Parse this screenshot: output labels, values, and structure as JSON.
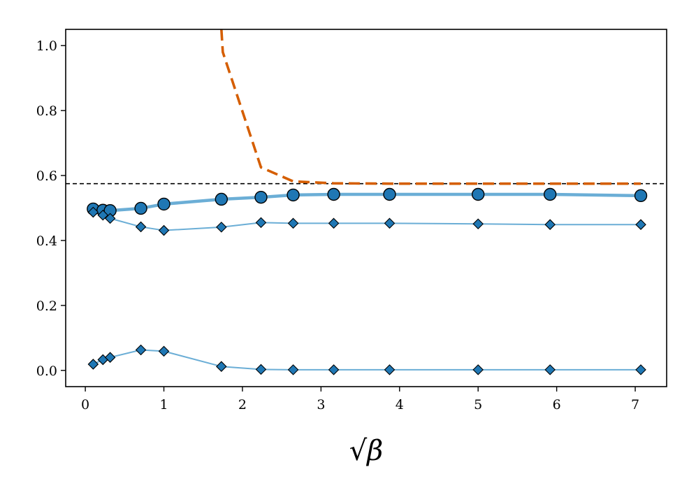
{
  "chart_data": {
    "type": "line",
    "title": "",
    "xlabel": "√β",
    "ylabel": "",
    "xlim": [
      -0.25,
      7.4
    ],
    "ylim": [
      -0.05,
      1.05
    ],
    "grid": false,
    "x_ticks": [
      0,
      1,
      2,
      3,
      4,
      5,
      6,
      7
    ],
    "y_ticks": [
      0.0,
      0.2,
      0.4,
      0.6,
      0.8,
      1.0
    ],
    "x_tick_labels": [
      "0",
      "1",
      "2",
      "3",
      "4",
      "5",
      "6",
      "7"
    ],
    "y_tick_labels": [
      "0.0",
      "0.2",
      "0.4",
      "0.6",
      "0.8",
      "1.0"
    ],
    "reference_line": {
      "y": 0.575,
      "style": "dashed",
      "color": "#000000"
    },
    "series": [
      {
        "marker": "circle",
        "style": "solid",
        "color": "#6baed6",
        "marker_color": "#1f77b4",
        "x": [
          0.1,
          0.224,
          0.316,
          0.707,
          1.0,
          1.732,
          2.236,
          2.646,
          3.162,
          3.873,
          5.0,
          5.916,
          7.071
        ],
        "y": [
          0.497,
          0.493,
          0.492,
          0.499,
          0.512,
          0.527,
          0.533,
          0.54,
          0.542,
          0.542,
          0.542,
          0.542,
          0.538
        ]
      },
      {
        "marker": "diamond",
        "style": "solid",
        "color": "#6baed6",
        "marker_color": "#1f77b4",
        "x": [
          0.1,
          0.224,
          0.316,
          0.707,
          1.0,
          1.732,
          2.236,
          2.646,
          3.162,
          3.873,
          5.0,
          5.916,
          7.071
        ],
        "y": [
          0.487,
          0.478,
          0.468,
          0.442,
          0.431,
          0.441,
          0.455,
          0.453,
          0.453,
          0.453,
          0.451,
          0.449,
          0.449
        ]
      },
      {
        "marker": "diamond",
        "style": "solid",
        "color": "#6baed6",
        "marker_color": "#1f77b4",
        "x": [
          0.1,
          0.224,
          0.316,
          0.707,
          1.0,
          1.732,
          2.236,
          2.646,
          3.162,
          3.873,
          5.0,
          5.916,
          7.071
        ],
        "y": [
          0.019,
          0.033,
          0.04,
          0.063,
          0.059,
          0.012,
          0.003,
          0.002,
          0.002,
          0.002,
          0.002,
          0.002,
          0.002
        ]
      },
      {
        "marker": "none",
        "style": "dashed",
        "color": "#d55e00",
        "x": [
          1.732,
          1.75,
          2.236,
          2.646,
          3.162,
          3.873,
          5.0,
          5.916,
          7.071
        ],
        "y": [
          1.05,
          0.98,
          0.625,
          0.582,
          0.576,
          0.575,
          0.575,
          0.575,
          0.575
        ]
      }
    ]
  }
}
